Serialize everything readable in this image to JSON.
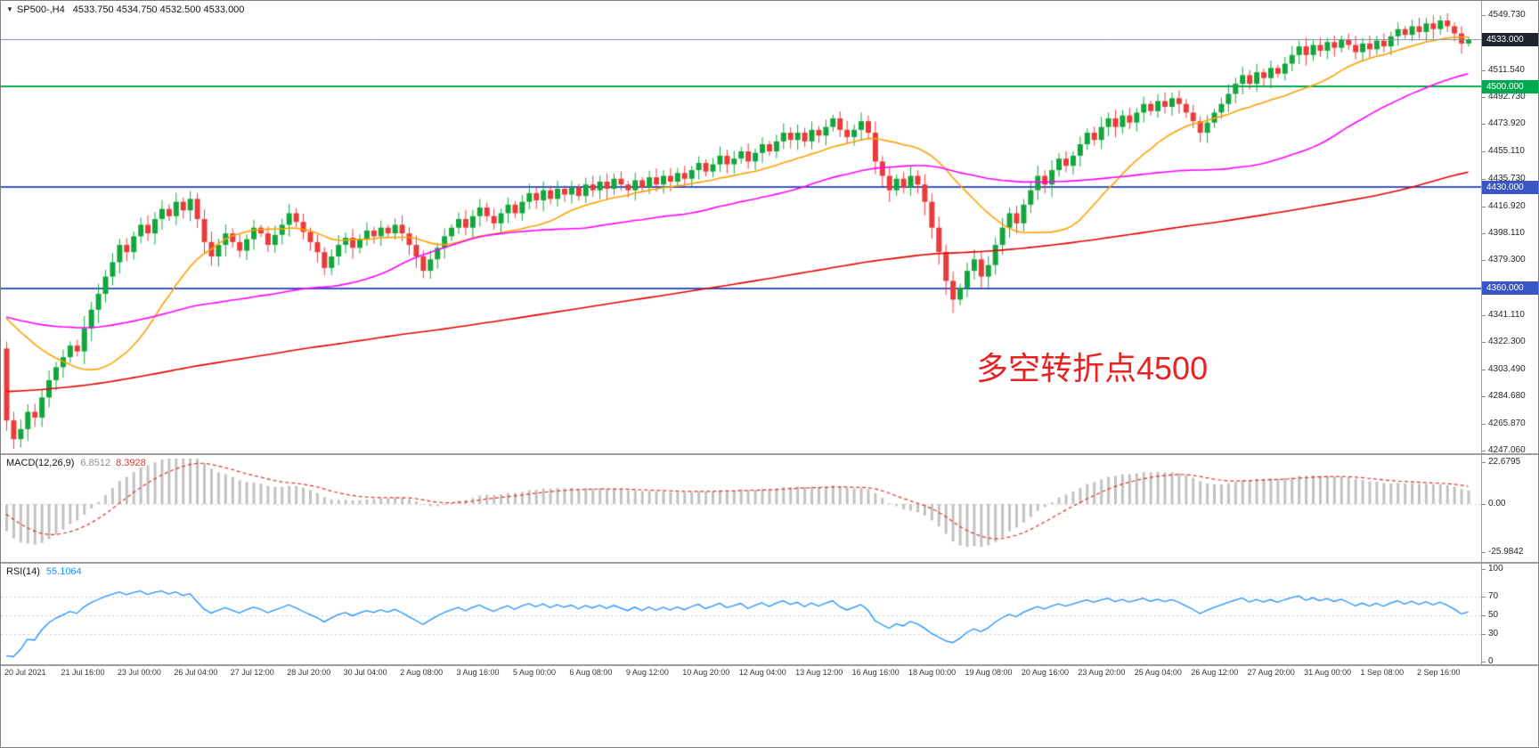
{
  "header": {
    "symbol": "SP500-,H4",
    "ohlc": "4533.750 4534.750 4532.500 4533.000"
  },
  "annotation": {
    "text": "多空转折点4500",
    "color": "#e62222"
  },
  "macd_panel": {
    "name": "MACD(12,26,9)",
    "main_value": "6.8512",
    "signal_value": "8.3928",
    "scale_labels": [
      "22.6795",
      "0.00",
      "-25.9842"
    ]
  },
  "rsi_panel": {
    "name": "RSI(14)",
    "value": "55.1064",
    "scale_labels": [
      "100",
      "70",
      "50",
      "30",
      "0"
    ]
  },
  "chart_data": {
    "type": "candlestick",
    "symbol": "SP500",
    "timeframe": "H4",
    "title": "SP500-,H4",
    "price_range": {
      "min": 4247.06,
      "max": 4549.73
    },
    "current_price": 4533.0,
    "first_open": 4318,
    "closes": [
      4268,
      4255,
      4262,
      4274,
      4270,
      4284,
      4296,
      4305,
      4312,
      4320,
      4316,
      4332,
      4345,
      4356,
      4368,
      4378,
      4390,
      4385,
      4396,
      4404,
      4398,
      4408,
      4415,
      4410,
      4420,
      4414,
      4422,
      4408,
      4392,
      4382,
      4390,
      4398,
      4392,
      4386,
      4394,
      4402,
      4398,
      4390,
      4397,
      4404,
      4412,
      4406,
      4399,
      4392,
      4385,
      4374,
      4382,
      4390,
      4395,
      4388,
      4394,
      4400,
      4396,
      4402,
      4398,
      4404,
      4398,
      4390,
      4382,
      4372,
      4380,
      4388,
      4396,
      4402,
      4408,
      4402,
      4410,
      4416,
      4410,
      4405,
      4412,
      4418,
      4412,
      4420,
      4426,
      4421,
      4428,
      4422,
      4429,
      4425,
      4430,
      4424,
      4432,
      4428,
      4434,
      4429,
      4436,
      4432,
      4428,
      4435,
      4430,
      4437,
      4432,
      4438,
      4434,
      4440,
      4436,
      4442,
      4447,
      4441,
      4446,
      4452,
      4446,
      4450,
      4455,
      4448,
      4454,
      4460,
      4455,
      4462,
      4468,
      4463,
      4468,
      4462,
      4470,
      4466,
      4472,
      4478,
      4470,
      4465,
      4470,
      4476,
      4468,
      4448,
      4438,
      4428,
      4436,
      4430,
      4438,
      4432,
      4420,
      4402,
      4385,
      4365,
      4352,
      4360,
      4372,
      4380,
      4368,
      4376,
      4390,
      4402,
      4412,
      4405,
      4418,
      4428,
      4438,
      4432,
      4442,
      4450,
      4445,
      4452,
      4460,
      4468,
      4463,
      4472,
      4478,
      4472,
      4480,
      4475,
      4482,
      4488,
      4483,
      4490,
      4486,
      4492,
      4488,
      4482,
      4476,
      4468,
      4475,
      4482,
      4488,
      4495,
      4502,
      4508,
      4502,
      4510,
      4506,
      4513,
      4509,
      4516,
      4522,
      4528,
      4522,
      4529,
      4525,
      4531,
      4527,
      4533,
      4529,
      4524,
      4530,
      4526,
      4532,
      4528,
      4535,
      4540,
      4536,
      4542,
      4538,
      4544,
      4540,
      4546,
      4542,
      4537,
      4530,
      4533
    ],
    "y_labels": [
      "4549.730",
      "4511.540",
      "4492.730",
      "4473.920",
      "4455.110",
      "4435.730",
      "4416.920",
      "4398.110",
      "4379.300",
      "4341.110",
      "4322.300",
      "4303.490",
      "4284.680",
      "4265.870",
      "4247.060"
    ],
    "x_labels": [
      "20 Jul 2021",
      "21 Jul 16:00",
      "23 Jul 00:00",
      "26 Jul 04:00",
      "27 Jul 12:00",
      "28 Jul 20:00",
      "30 Jul 04:00",
      "2 Aug 08:00",
      "3 Aug 16:00",
      "5 Aug 00:00",
      "6 Aug 08:00",
      "9 Aug 12:00",
      "10 Aug 20:00",
      "12 Aug 04:00",
      "13 Aug 12:00",
      "16 Aug 16:00",
      "18 Aug 00:00",
      "19 Aug 08:00",
      "20 Aug 16:00",
      "23 Aug 20:00",
      "25 Aug 04:00",
      "26 Aug 12:00",
      "27 Aug 20:00",
      "31 Aug 00:00",
      "1 Sep 08:00",
      "2 Sep 16:00"
    ],
    "badges": [
      {
        "text": "4533.000",
        "value": 4533.0,
        "bg": "#20242c",
        "role": "current-price"
      },
      {
        "text": "4500.000",
        "value": 4500.0,
        "bg": "#00a94f",
        "role": "level"
      },
      {
        "text": "4430.000",
        "value": 4430.0,
        "bg": "#3a56c4",
        "role": "level"
      },
      {
        "text": "4360.000",
        "value": 4360.0,
        "bg": "#3a56c4",
        "role": "level"
      }
    ],
    "levels": [
      {
        "value": 4500,
        "color": "#00a94f"
      },
      {
        "value": 4430,
        "color": "#3a56c4"
      },
      {
        "value": 4360,
        "color": "#3a56c4"
      }
    ],
    "moving_averages": [
      {
        "period": 20,
        "color": "#ffa000"
      },
      {
        "period": 55,
        "color": "#ff00ff"
      },
      {
        "period": 200,
        "color": "#e60000"
      }
    ],
    "macd": {
      "fast": 12,
      "slow": 26,
      "signal": 9,
      "last_main": 6.8512,
      "last_signal": 8.3928,
      "scale_max": 22.6795,
      "scale_min": -25.9842
    },
    "rsi": {
      "period": 14,
      "last": 55.1064,
      "levels": [
        70,
        50,
        30
      ]
    },
    "colors": {
      "up": "#12a63c",
      "down": "#ea3b3b",
      "hist": "#c2c2c2",
      "signal": "#e03030",
      "rsi_line": "#1e90ff",
      "bid": "#7d8da0"
    }
  }
}
